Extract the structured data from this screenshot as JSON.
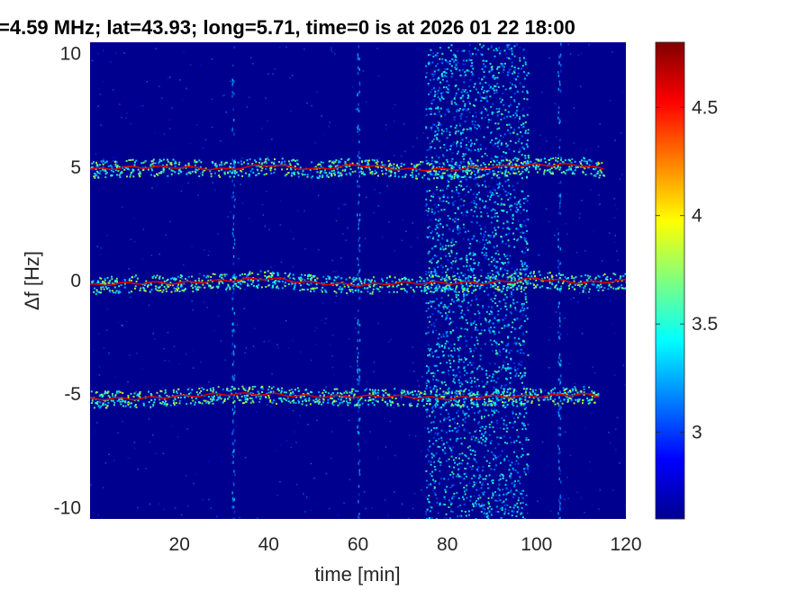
{
  "chart_data": {
    "type": "heatmap",
    "title": "=4.59 MHz;  lat=43.93; long=5.71, time=0 is at 2026 01 22 18:00",
    "xlabel": "time [min]",
    "ylabel": "Δf [Hz]",
    "xlim": [
      0,
      120
    ],
    "ylim": [
      -10.5,
      10.5
    ],
    "xticks": [
      20,
      40,
      60,
      80,
      100,
      120
    ],
    "xtick_labels": [
      "20",
      "40",
      "60",
      "80",
      "100",
      "120"
    ],
    "yticks": [
      -10,
      -5,
      0,
      5,
      10
    ],
    "ytick_labels": [
      "-10",
      "-5",
      "0",
      "5",
      "10"
    ],
    "colorbar": {
      "colormap": "jet",
      "range": [
        2.6,
        4.8
      ],
      "ticks": [
        3,
        3.5,
        4,
        4.5
      ],
      "tick_labels": [
        "3",
        "3.5",
        "4",
        "4.5"
      ]
    },
    "background_value": 2.7,
    "noisy_band_x": [
      75,
      98
    ],
    "vertical_streaks_x": [
      32,
      60,
      105
    ],
    "traces": [
      {
        "label": "",
        "x": [
          0,
          10,
          20,
          30,
          40,
          50,
          60,
          70,
          80,
          90,
          100,
          110,
          115
        ],
        "y": [
          4.9,
          5.0,
          5.0,
          4.9,
          5.1,
          4.9,
          5.1,
          4.9,
          4.9,
          5.0,
          5.1,
          5.1,
          4.9
        ],
        "value": 4.6
      },
      {
        "label": "",
        "x": [
          0,
          10,
          20,
          30,
          40,
          50,
          60,
          70,
          80,
          90,
          100,
          110,
          120
        ],
        "y": [
          -0.2,
          -0.1,
          -0.1,
          0.0,
          0.1,
          -0.1,
          -0.2,
          -0.1,
          -0.1,
          -0.1,
          0.1,
          -0.1,
          0.0
        ],
        "value": 4.6
      },
      {
        "label": "",
        "x": [
          0,
          10,
          20,
          30,
          40,
          50,
          60,
          70,
          80,
          90,
          100,
          110,
          114
        ],
        "y": [
          -5.2,
          -5.2,
          -5.1,
          -5.0,
          -5.0,
          -5.1,
          -5.1,
          -5.1,
          -5.2,
          -5.1,
          -5.1,
          -5.0,
          -5.1
        ],
        "value": 4.6
      }
    ]
  }
}
